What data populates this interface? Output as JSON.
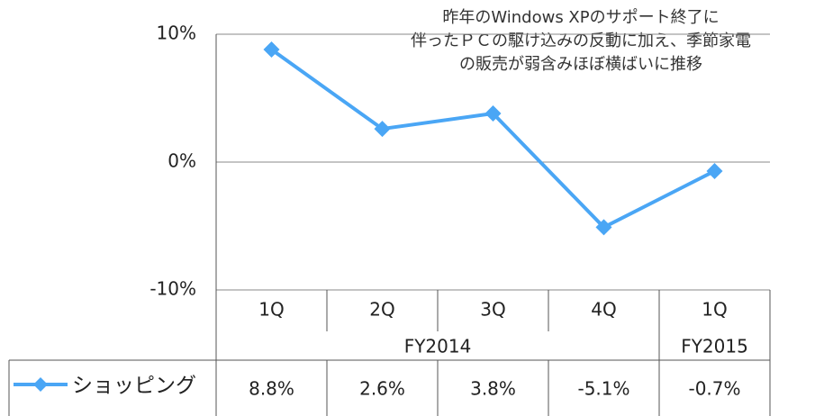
{
  "chart_data": {
    "type": "line",
    "annotation": [
      "昨年のWindows XPのサポート終了に",
      "伴ったＰＣの駆け込みの反動に加え、季節家電",
      "の販売が弱含みほぼ横ばいに推移"
    ],
    "categories": [
      "1Q",
      "2Q",
      "3Q",
      "4Q",
      "1Q"
    ],
    "fiscal_years": [
      "FY2014",
      "FY2014",
      "FY2014",
      "FY2014",
      "FY2015"
    ],
    "series": [
      {
        "name": "ショッピング",
        "color": "#4aa6f5",
        "values": [
          8.8,
          2.6,
          3.8,
          -5.1,
          -0.7
        ],
        "value_labels": [
          "8.8%",
          "2.6%",
          "3.8%",
          "-5.1%",
          "-0.7%"
        ]
      }
    ],
    "ylim": [
      -10,
      10
    ],
    "yticks": [
      {
        "value": 10,
        "label": "10%"
      },
      {
        "value": 0,
        "label": "0%"
      },
      {
        "value": -10,
        "label": "-10%"
      }
    ]
  }
}
